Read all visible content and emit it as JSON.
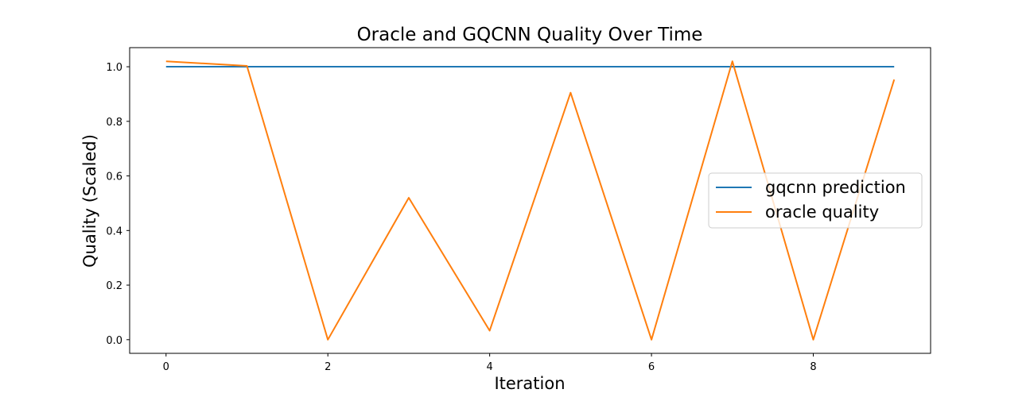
{
  "chart_data": {
    "type": "line",
    "title": "Oracle and GQCNN Quality Over Time",
    "xlabel": "Iteration",
    "ylabel": "Quality (Scaled)",
    "x": [
      0,
      1,
      2,
      3,
      4,
      5,
      6,
      7,
      8,
      9
    ],
    "xlim": [
      -0.45,
      9.45
    ],
    "ylim": [
      -0.05,
      1.07
    ],
    "xticks": [
      "0",
      "2",
      "4",
      "6",
      "8"
    ],
    "yticks": [
      "0.0",
      "0.2",
      "0.4",
      "0.6",
      "0.8",
      "1.0"
    ],
    "grid": false,
    "legend_position": "center-right",
    "series": [
      {
        "name": "gqcnn prediction",
        "color": "#1f77b4",
        "values": [
          1.0,
          1.0,
          1.0,
          1.0,
          1.0,
          1.0,
          1.0,
          1.0,
          1.0,
          1.0
        ]
      },
      {
        "name": "oracle quality",
        "color": "#ff7f0e",
        "values": [
          1.02,
          1.003,
          0.0,
          0.52,
          0.033,
          0.905,
          0.0,
          1.02,
          0.0,
          0.953
        ]
      }
    ]
  }
}
